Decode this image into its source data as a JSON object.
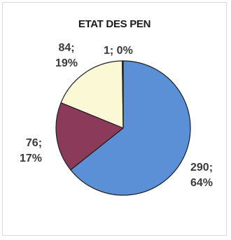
{
  "chart_data": {
    "type": "pie",
    "title": "ETAT DES PEN",
    "slices": [
      {
        "value": 290,
        "percent": "64%",
        "label_value": "290;",
        "label_percent": "64%",
        "color": "#5b8fd6"
      },
      {
        "value": 76,
        "percent": "17%",
        "label_value": "76;",
        "label_percent": "17%",
        "color": "#8b3a5a"
      },
      {
        "value": 84,
        "percent": "19%",
        "label_value": "84;",
        "label_percent": "19%",
        "color": "#fbf8d6"
      },
      {
        "value": 1,
        "percent": "0%",
        "label_value": "1; 0%",
        "label_percent": "",
        "color": "#9bbb59"
      }
    ],
    "legend": "none"
  }
}
